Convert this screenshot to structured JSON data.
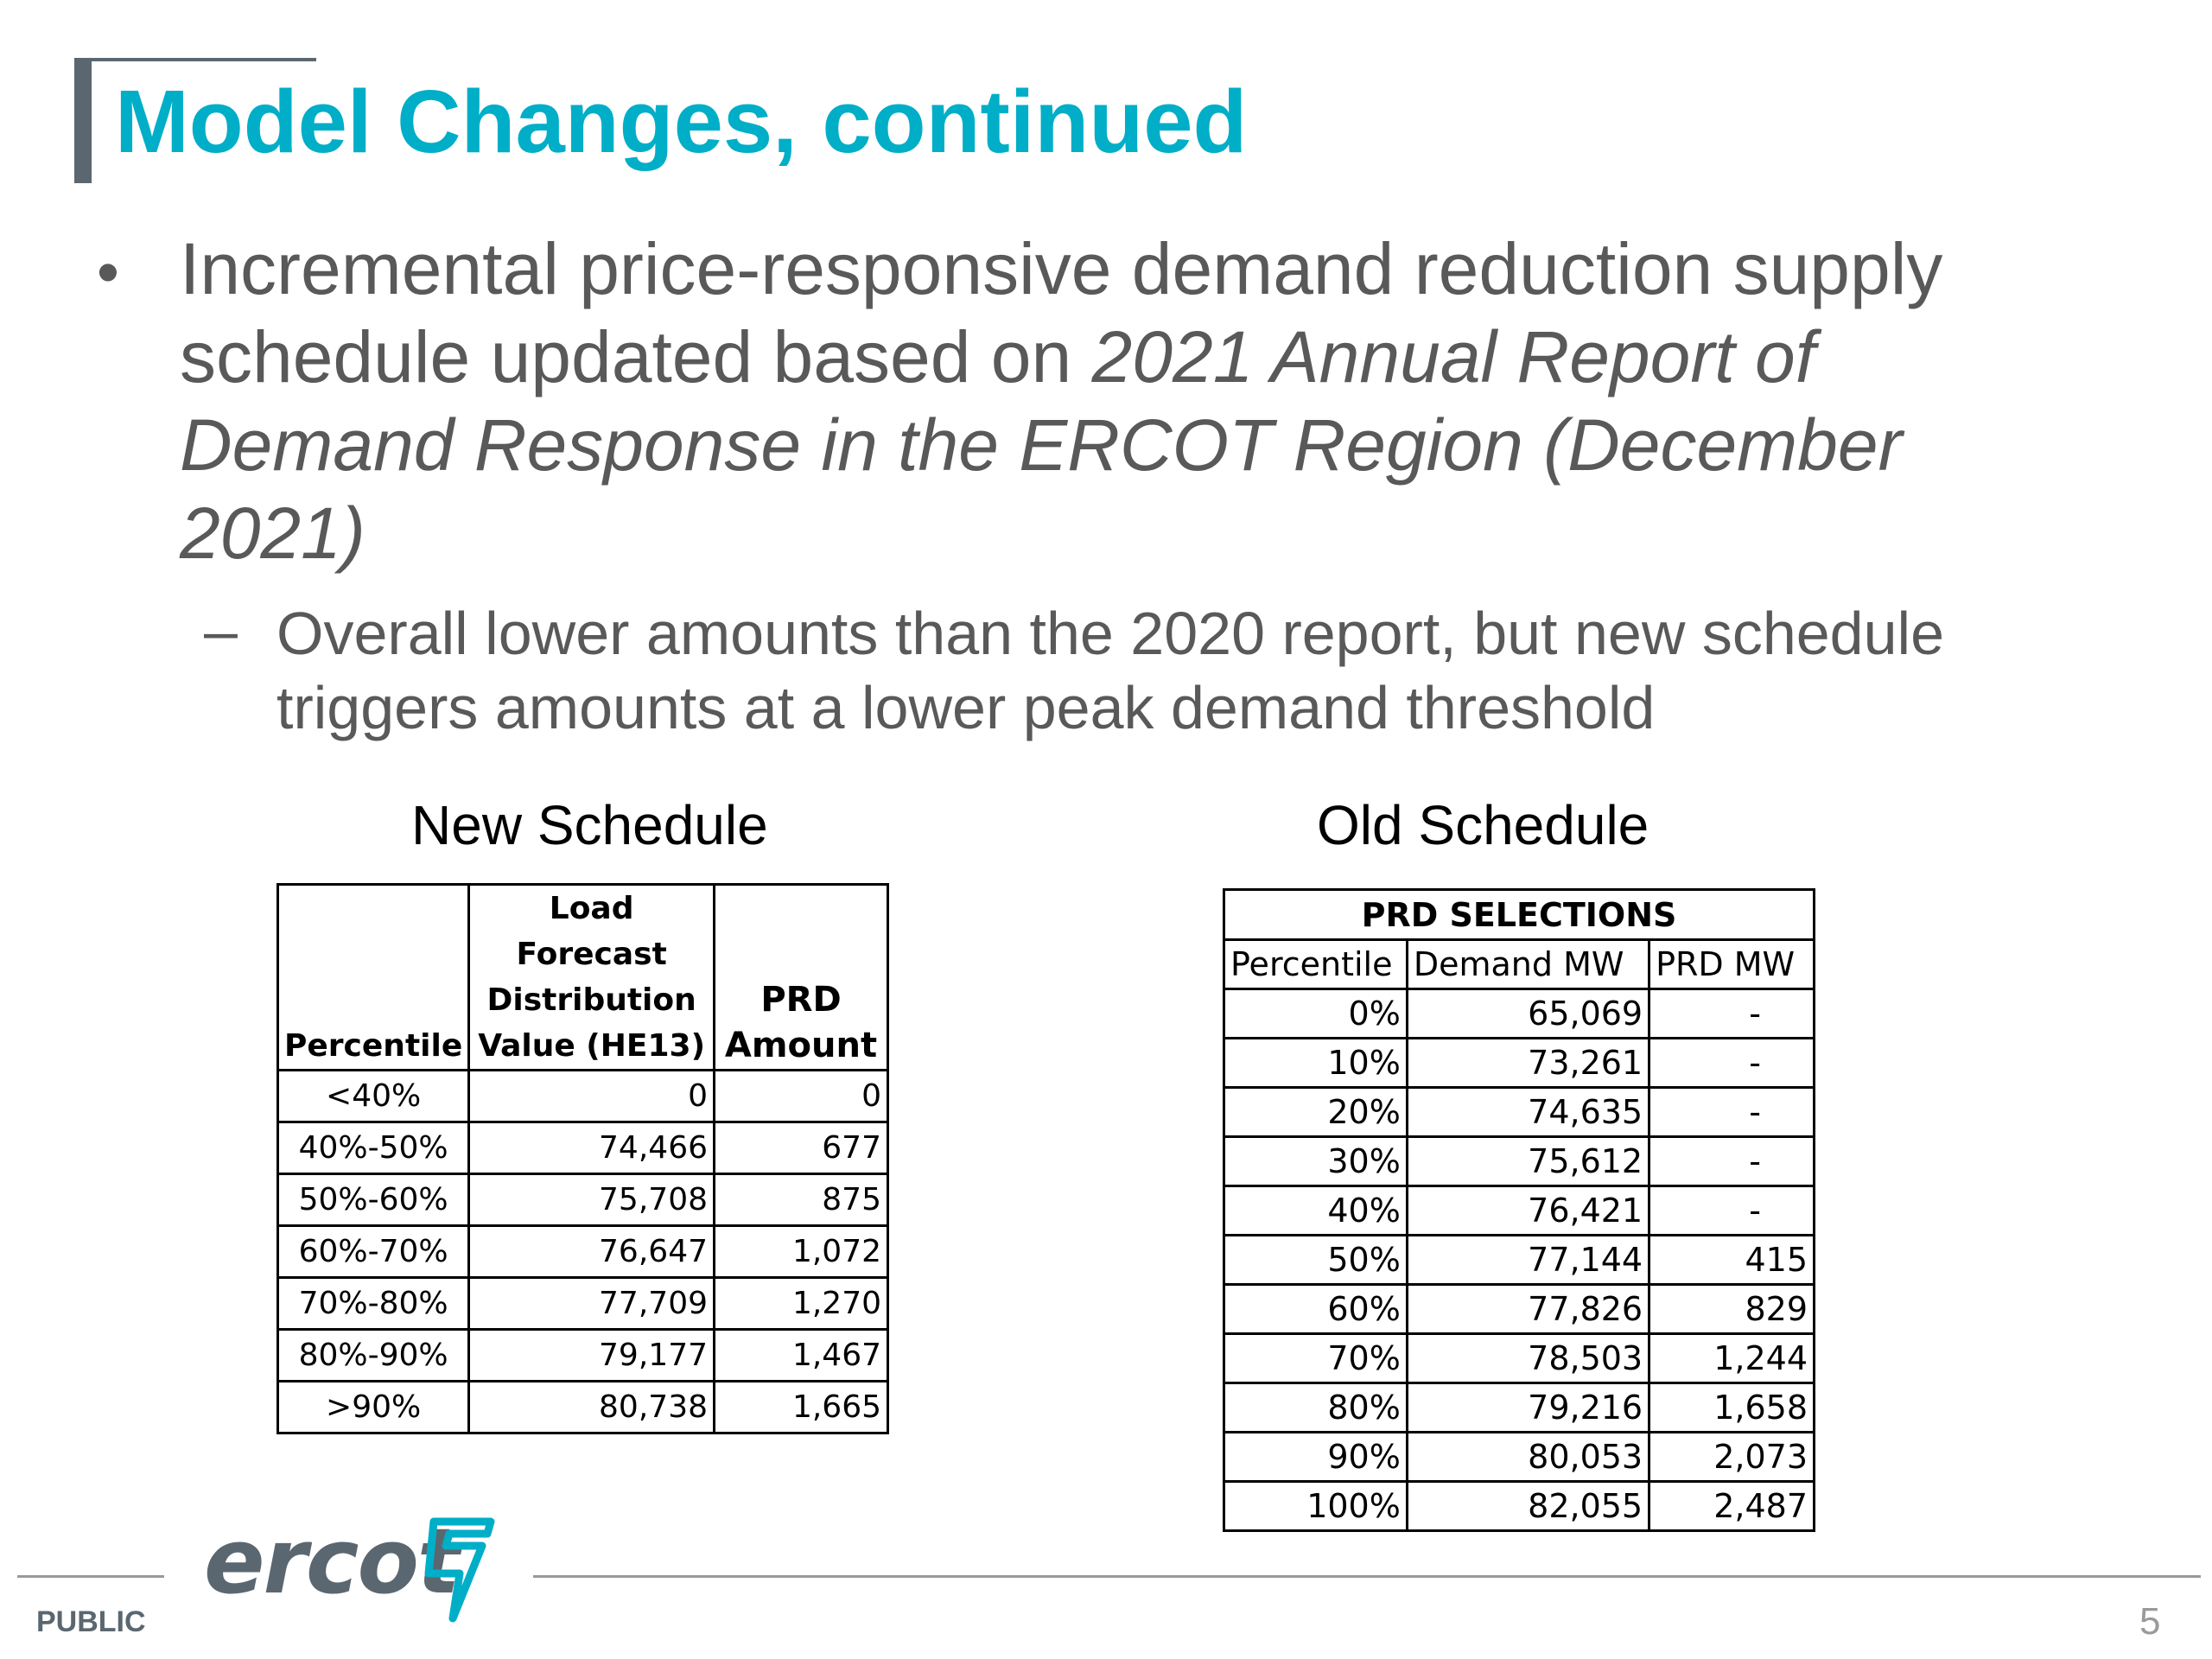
{
  "slide": {
    "title": "Model Changes, continued",
    "bullet": {
      "text_plain": "Incremental price-responsive demand reduction supply schedule updated based on ",
      "text_italic": "2021 Annual Report of Demand Response in the ERCOT Region (December 2021)"
    },
    "sub_bullet": "Overall lower amounts than the 2020 report, but new schedule triggers amounts at a lower peak demand threshold"
  },
  "new_schedule": {
    "caption": "New Schedule",
    "headers": [
      "Percentile",
      "Load Forecast Distribution Value (HE13)",
      "PRD Amount"
    ],
    "header_lines": {
      "forecast_1": "Load Forecast",
      "forecast_2": "Distribution",
      "forecast_3": "Value (HE13)",
      "prd_1": "PRD",
      "prd_2": "Amount"
    },
    "rows": [
      {
        "percentile": "<40%",
        "value": "0",
        "amount": "0"
      },
      {
        "percentile": "40%-50%",
        "value": "74,466",
        "amount": "677"
      },
      {
        "percentile": "50%-60%",
        "value": "75,708",
        "amount": "875"
      },
      {
        "percentile": "60%-70%",
        "value": "76,647",
        "amount": "1,072"
      },
      {
        "percentile": "70%-80%",
        "value": "77,709",
        "amount": "1,270"
      },
      {
        "percentile": "80%-90%",
        "value": "79,177",
        "amount": "1,467"
      },
      {
        "percentile": ">90%",
        "value": "80,738",
        "amount": "1,665"
      }
    ]
  },
  "old_schedule": {
    "caption": "Old Schedule",
    "group_header": "PRD SELECTIONS",
    "headers": [
      "Percentile",
      "Demand MW",
      "PRD MW"
    ],
    "rows": [
      {
        "percentile": "0%",
        "demand": "65,069",
        "prd": "-"
      },
      {
        "percentile": "10%",
        "demand": "73,261",
        "prd": "-"
      },
      {
        "percentile": "20%",
        "demand": "74,635",
        "prd": "-"
      },
      {
        "percentile": "30%",
        "demand": "75,612",
        "prd": "-"
      },
      {
        "percentile": "40%",
        "demand": "76,421",
        "prd": "-"
      },
      {
        "percentile": "50%",
        "demand": "77,144",
        "prd": "415"
      },
      {
        "percentile": "60%",
        "demand": "77,826",
        "prd": "829"
      },
      {
        "percentile": "70%",
        "demand": "78,503",
        "prd": "1,244"
      },
      {
        "percentile": "80%",
        "demand": "79,216",
        "prd": "1,658"
      },
      {
        "percentile": "90%",
        "demand": "80,053",
        "prd": "2,073"
      },
      {
        "percentile": "100%",
        "demand": "82,055",
        "prd": "2,487"
      }
    ]
  },
  "footer": {
    "logo_text": "ercot",
    "classification": "PUBLIC",
    "page_number": "5",
    "colors": {
      "accent": "#00aec7",
      "logo_gray": "#5b6770"
    },
    "icons": [
      "ercot-lightning-logo-icon"
    ]
  }
}
